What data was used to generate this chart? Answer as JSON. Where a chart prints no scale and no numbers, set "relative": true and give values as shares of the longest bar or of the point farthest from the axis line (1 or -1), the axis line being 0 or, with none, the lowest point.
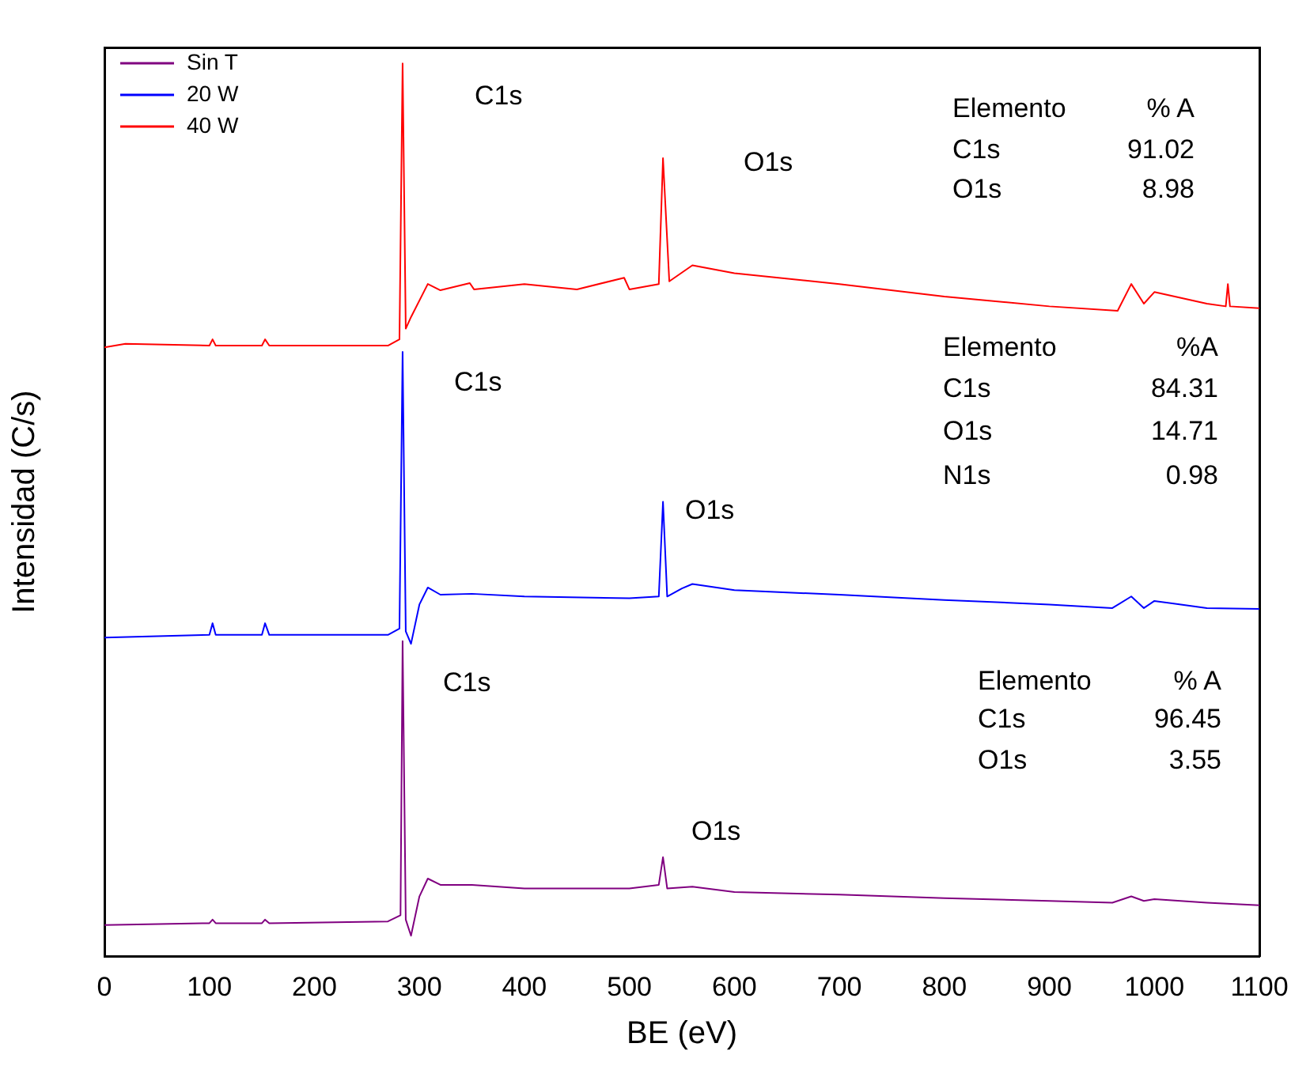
{
  "chart_data": {
    "type": "line",
    "relative": true,
    "xlabel": "BE (eV)",
    "ylabel": "Intensidad (C/s)",
    "xlim": [
      0,
      1100
    ],
    "xticks": [
      0,
      100,
      200,
      300,
      400,
      500,
      600,
      700,
      800,
      900,
      1000,
      1100
    ],
    "legend": "top left",
    "grid": false,
    "marker": "none",
    "line_style": "solid",
    "series": [
      {
        "name": "Sin T",
        "color": "#800080",
        "x": [
          0,
          100,
          103,
          106,
          150,
          153,
          157,
          270,
          282,
          284,
          287,
          292,
          300,
          308,
          320,
          350,
          400,
          500,
          528,
          532,
          536,
          560,
          600,
          700,
          800,
          900,
          960,
          978,
          990,
          1000,
          1050,
          1100
        ],
        "values": [
          0.035,
          0.037,
          0.041,
          0.037,
          0.037,
          0.041,
          0.037,
          0.039,
          0.046,
          0.353,
          0.041,
          0.023,
          0.067,
          0.087,
          0.08,
          0.08,
          0.076,
          0.076,
          0.08,
          0.111,
          0.076,
          0.078,
          0.072,
          0.069,
          0.065,
          0.062,
          0.06,
          0.067,
          0.062,
          0.064,
          0.06,
          0.057
        ]
      },
      {
        "name": "20 W",
        "color": "#0000ff",
        "x": [
          0,
          100,
          103,
          106,
          150,
          153,
          157,
          270,
          281,
          284,
          287,
          292,
          300,
          308,
          320,
          350,
          400,
          500,
          528,
          532,
          536,
          550,
          560,
          600,
          700,
          800,
          900,
          960,
          978,
          990,
          1000,
          1050,
          1100
        ],
        "values": [
          0.357,
          0.36,
          0.373,
          0.36,
          0.36,
          0.373,
          0.36,
          0.36,
          0.367,
          0.677,
          0.364,
          0.35,
          0.394,
          0.413,
          0.405,
          0.406,
          0.403,
          0.401,
          0.403,
          0.509,
          0.403,
          0.412,
          0.417,
          0.41,
          0.405,
          0.399,
          0.394,
          0.39,
          0.403,
          0.39,
          0.398,
          0.39,
          0.389
        ]
      },
      {
        "name": "40 W",
        "color": "#ff0000",
        "x": [
          0,
          20,
          100,
          103,
          106,
          150,
          153,
          157,
          270,
          281,
          284,
          287,
          292,
          308,
          320,
          348,
          352,
          400,
          450,
          495,
          500,
          528,
          532,
          538,
          560,
          600,
          700,
          800,
          900,
          965,
          978,
          990,
          1000,
          1050,
          1068,
          1070,
          1072,
          1100
        ],
        "values": [
          0.682,
          0.686,
          0.684,
          0.691,
          0.684,
          0.684,
          0.691,
          0.684,
          0.684,
          0.691,
          1,
          0.703,
          0.716,
          0.753,
          0.746,
          0.754,
          0.747,
          0.753,
          0.747,
          0.76,
          0.747,
          0.753,
          0.894,
          0.756,
          0.774,
          0.765,
          0.753,
          0.739,
          0.728,
          0.723,
          0.753,
          0.731,
          0.744,
          0.731,
          0.728,
          0.753,
          0.728,
          0.726
        ]
      }
    ],
    "annotations": [
      "C1s",
      "O1s",
      "C1s",
      "O1s",
      "C1s",
      "O1s",
      "Elemento  % A",
      "C1s  91.02",
      "O1s  8.98",
      "Elemento  %A",
      "C1s  84.31",
      "O1s  14.71",
      "N1s  0.98",
      "Elemento  % A",
      "C1s  96.45",
      "O1s  3.55"
    ]
  }
}
